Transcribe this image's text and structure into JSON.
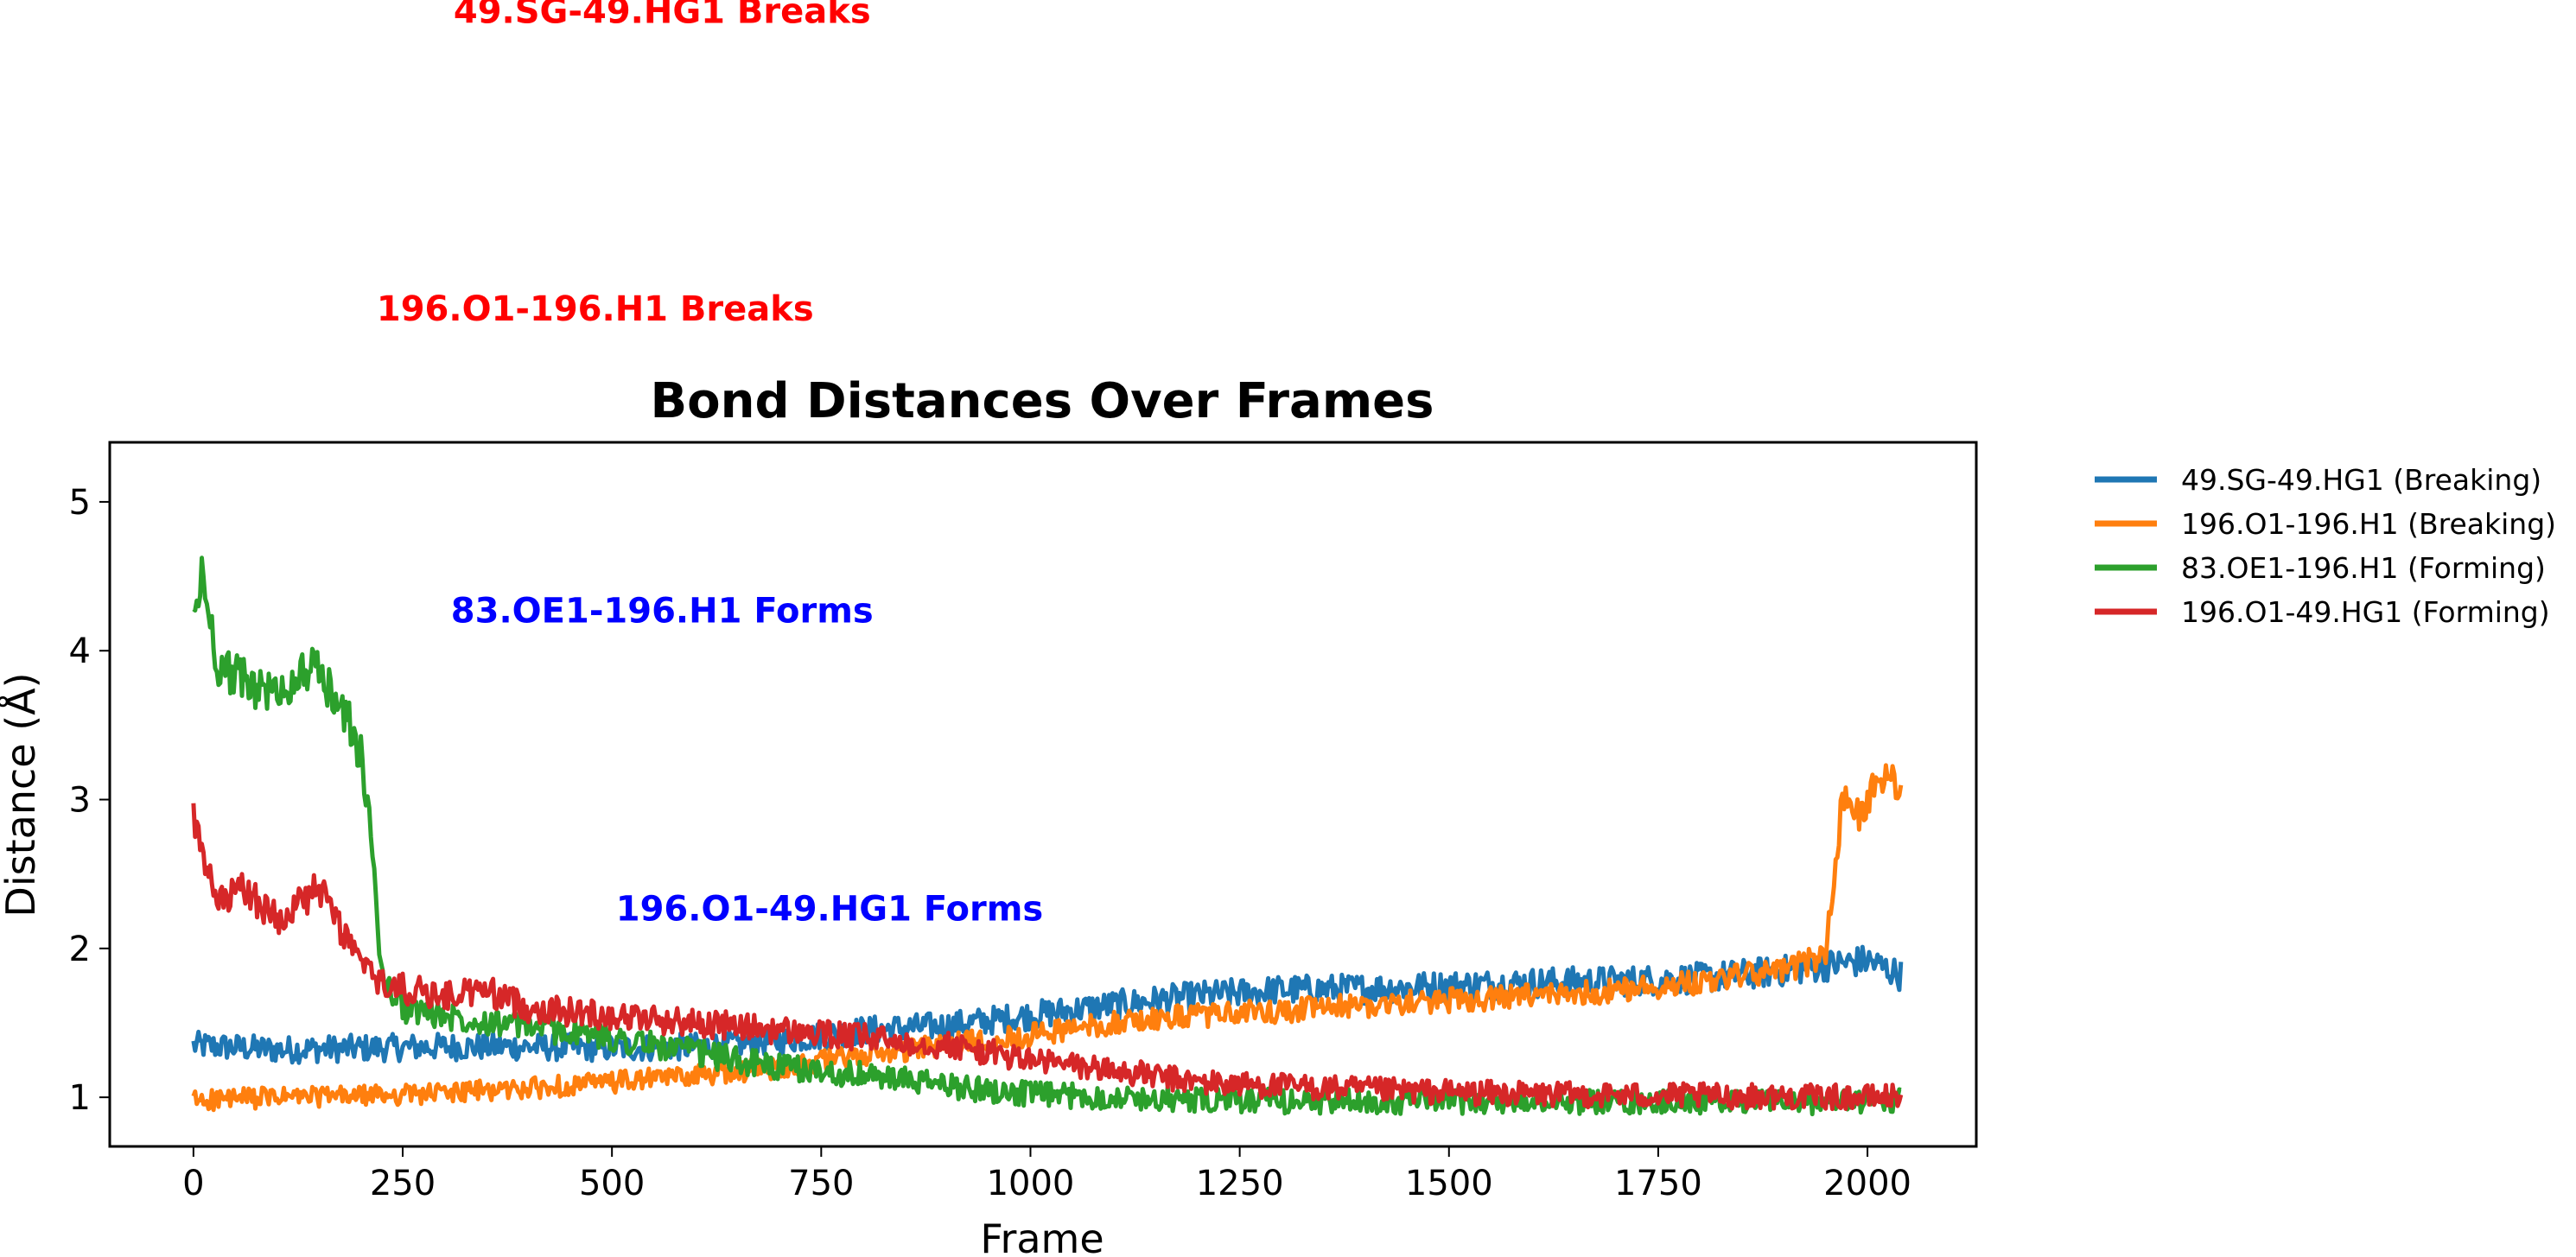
{
  "chart_data": {
    "type": "line",
    "title": "Bond Distances Over Frames",
    "xlabel": "Frame",
    "ylabel": "Distance (Å)",
    "xlim": [
      -100,
      2130
    ],
    "ylim": [
      0.67,
      5.4
    ],
    "xticks": [
      0,
      250,
      500,
      750,
      1000,
      1250,
      1500,
      1750,
      2000
    ],
    "yticks": [
      1,
      2,
      3,
      4,
      5
    ],
    "grid": false,
    "legend_position": "outside-right",
    "series": [
      {
        "name": "49.SG-49.HG1 (Breaking)",
        "color": "#1f77b4",
        "noise": 0.06,
        "x": [
          0,
          100,
          200,
          300,
          400,
          500,
          600,
          700,
          800,
          900,
          1000,
          1100,
          1200,
          1300,
          1400,
          1500,
          1600,
          1700,
          1800,
          1900,
          2000,
          2040
        ],
        "y": [
          1.35,
          1.32,
          1.33,
          1.34,
          1.34,
          1.33,
          1.34,
          1.38,
          1.45,
          1.48,
          1.55,
          1.62,
          1.68,
          1.72,
          1.73,
          1.75,
          1.77,
          1.78,
          1.8,
          1.85,
          1.92,
          1.82
        ]
      },
      {
        "name": "196.O1-196.H1 (Breaking)",
        "color": "#ff7f0e",
        "noise": 0.05,
        "x": [
          0,
          100,
          200,
          300,
          400,
          500,
          600,
          700,
          800,
          900,
          1000,
          1100,
          1200,
          1300,
          1400,
          1500,
          1600,
          1700,
          1800,
          1900,
          1950,
          1970,
          1990,
          2010,
          2030,
          2040
        ],
        "y": [
          0.98,
          1.0,
          1.01,
          1.03,
          1.06,
          1.1,
          1.15,
          1.2,
          1.28,
          1.35,
          1.42,
          1.5,
          1.55,
          1.58,
          1.62,
          1.65,
          1.68,
          1.72,
          1.78,
          1.85,
          1.95,
          3.0,
          2.9,
          3.1,
          3.2,
          3.0
        ]
      },
      {
        "name": "83.OE1-196.H1 (Forming)",
        "color": "#2ca02c",
        "noise": 0.06,
        "x": [
          0,
          10,
          30,
          60,
          100,
          140,
          180,
          200,
          215,
          225,
          250,
          300,
          400,
          500,
          600,
          700,
          800,
          900,
          1000,
          1200,
          1400,
          1600,
          1800,
          2000,
          2040
        ],
        "y": [
          4.2,
          4.5,
          3.9,
          3.8,
          3.7,
          3.9,
          3.6,
          3.3,
          2.6,
          1.8,
          1.6,
          1.55,
          1.48,
          1.4,
          1.3,
          1.2,
          1.15,
          1.08,
          1.02,
          0.98,
          0.97,
          0.97,
          0.97,
          0.97,
          0.98
        ]
      },
      {
        "name": "196.O1-49.HG1 (Forming)",
        "color": "#d62728",
        "noise": 0.06,
        "x": [
          0,
          10,
          30,
          60,
          100,
          150,
          200,
          215,
          230,
          300,
          350,
          400,
          500,
          600,
          700,
          800,
          900,
          1000,
          1100,
          1200,
          1400,
          1600,
          1800,
          2000,
          2040
        ],
        "y": [
          2.9,
          2.6,
          2.3,
          2.4,
          2.2,
          2.4,
          1.9,
          1.8,
          1.75,
          1.68,
          1.72,
          1.6,
          1.55,
          1.5,
          1.45,
          1.4,
          1.35,
          1.25,
          1.18,
          1.1,
          1.05,
          1.02,
          1.01,
          1.0,
          1.01
        ]
      }
    ],
    "annotations": [
      {
        "text": "49.SG-49.HG1 Breaks",
        "color": "#ff0000",
        "x": 560,
        "y": 8.3
      },
      {
        "text": "196.O1-196.H1 Breaks",
        "color": "#ff0000",
        "x": 480,
        "y": 6.3
      },
      {
        "text": "83.OE1-196.H1 Forms",
        "color": "#0000ff",
        "x": 560,
        "y": 4.27
      },
      {
        "text": "196.O1-49.HG1 Forms",
        "color": "#0000ff",
        "x": 760,
        "y": 2.27
      }
    ]
  }
}
